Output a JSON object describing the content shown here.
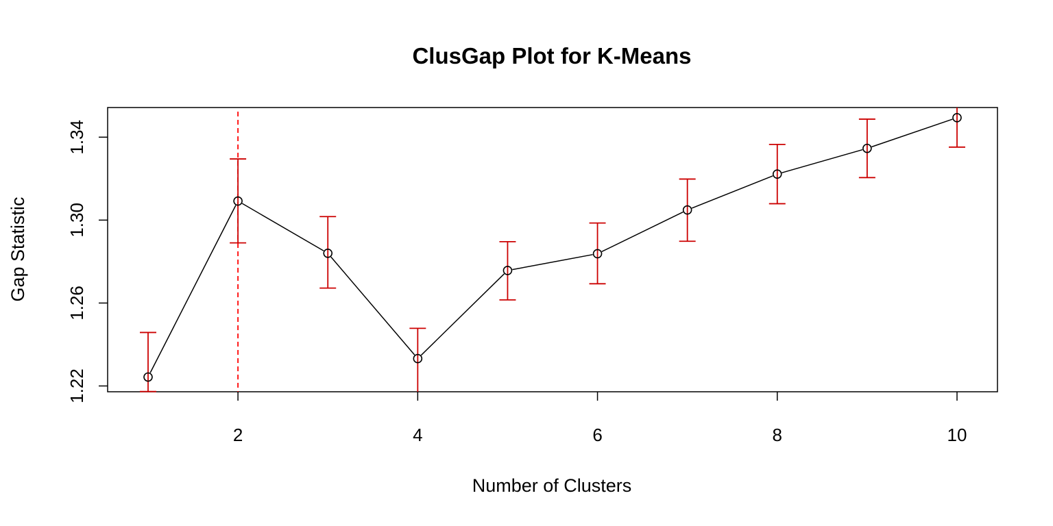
{
  "chart_data": {
    "type": "line",
    "title": "ClusGap Plot for K-Means",
    "xlabel": "Number of Clusters",
    "ylabel": "Gap Statistic",
    "x": [
      1,
      2,
      3,
      4,
      5,
      6,
      7,
      8,
      9,
      10
    ],
    "series": [
      {
        "values": [
          1.2243,
          1.3092,
          1.284,
          1.2332,
          1.2757,
          1.2838,
          1.3049,
          1.3222,
          1.3346,
          1.3494
        ],
        "error_lower": [
          1.2173,
          1.289,
          1.2672,
          1.2171,
          1.2615,
          1.2693,
          1.2898,
          1.3079,
          1.3205,
          1.3352
        ],
        "error_upper": [
          1.2458,
          1.3295,
          1.3017,
          1.2478,
          1.2896,
          1.2986,
          1.3198,
          1.3365,
          1.3487,
          1.364
        ]
      }
    ],
    "x_ticks": [
      "2",
      "4",
      "6",
      "8",
      "10"
    ],
    "y_ticks": [
      "1.22",
      "1.26",
      "1.30",
      "1.34"
    ],
    "xlim": [
      0.55,
      10.45
    ],
    "ylim": [
      1.2172,
      1.3543
    ],
    "optimal_k": 2,
    "grid": false,
    "colors": {
      "line": "#000000",
      "error_bars": "#cc0000",
      "optimal_line": "#ff0000"
    }
  }
}
